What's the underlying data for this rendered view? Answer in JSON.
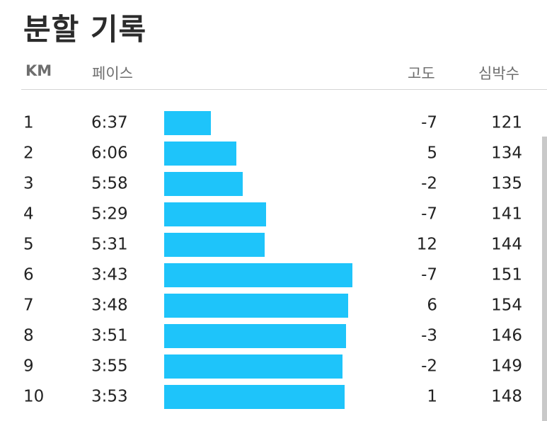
{
  "header": {
    "title": "분할 기록",
    "columns": {
      "km": "KM",
      "pace": "페이스",
      "elevation": "고도",
      "heart_rate": "심박수"
    }
  },
  "colors": {
    "bar": "#1ec4fa",
    "divider": "#d4d4d4",
    "header_text": "#6e6e6e"
  },
  "splits": [
    {
      "km": "1",
      "pace": "6:37",
      "elevation": "-7",
      "heart_rate": "121"
    },
    {
      "km": "2",
      "pace": "6:06",
      "elevation": "5",
      "heart_rate": "134"
    },
    {
      "km": "3",
      "pace": "5:58",
      "elevation": "-2",
      "heart_rate": "135"
    },
    {
      "km": "4",
      "pace": "5:29",
      "elevation": "-7",
      "heart_rate": "141"
    },
    {
      "km": "5",
      "pace": "5:31",
      "elevation": "12",
      "heart_rate": "144"
    },
    {
      "km": "6",
      "pace": "3:43",
      "elevation": "-7",
      "heart_rate": "151"
    },
    {
      "km": "7",
      "pace": "3:48",
      "elevation": "6",
      "heart_rate": "154"
    },
    {
      "km": "8",
      "pace": "3:51",
      "elevation": "-3",
      "heart_rate": "146"
    },
    {
      "km": "9",
      "pace": "3:55",
      "elevation": "-2",
      "heart_rate": "149"
    },
    {
      "km": "10",
      "pace": "3:53",
      "elevation": "1",
      "heart_rate": "148"
    }
  ]
}
